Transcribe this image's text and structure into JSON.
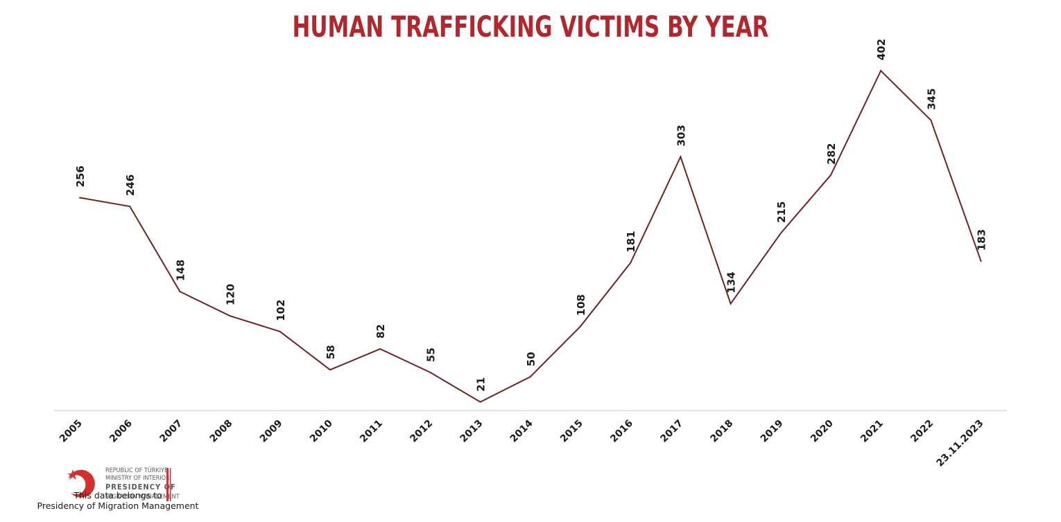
{
  "title": "HUMAN TRAFFICKING VICTIMS BY YEAR",
  "colors": {
    "title": "#b0272d",
    "line": "#6b2222",
    "axis": "#d9d9d9",
    "logo_red": "#d32f2f"
  },
  "logo": {
    "line1": "REPUBLIC OF TÜRKIYE",
    "line2": "MINISTRY OF INTERIOR",
    "line3": "PRESIDENCY OF",
    "line4": "MIGRATION MANAGEMENT",
    "icon": "crescent-star-icon"
  },
  "credit": {
    "line1": "This data belongs to",
    "line2": "Presidency of Migration Management"
  },
  "chart_data": {
    "type": "line",
    "title": "HUMAN TRAFFICKING VICTIMS BY YEAR",
    "xlabel": "",
    "ylabel": "",
    "categories": [
      "2005",
      "2006",
      "2007",
      "2008",
      "2009",
      "2010",
      "2011",
      "2012",
      "2013",
      "2014",
      "2015",
      "2016",
      "2017",
      "2018",
      "2019",
      "2020",
      "2021",
      "2022",
      "23.11.2023"
    ],
    "values": [
      256,
      246,
      148,
      120,
      102,
      58,
      82,
      55,
      21,
      50,
      108,
      181,
      303,
      134,
      215,
      282,
      402,
      345,
      183
    ],
    "ylim": [
      0,
      440
    ],
    "grid": false,
    "legend": "none",
    "data_labels": true
  }
}
